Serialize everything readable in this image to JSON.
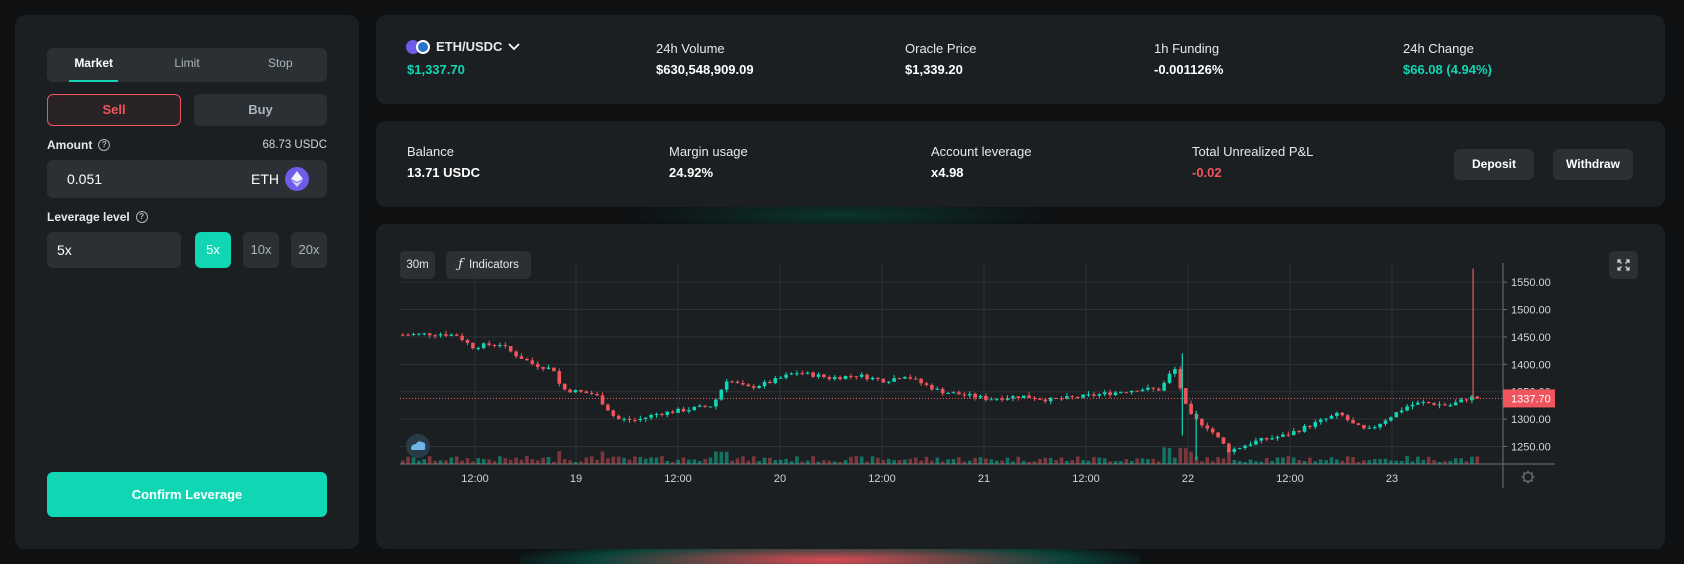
{
  "order": {
    "tabs": [
      "Market",
      "Limit",
      "Stop"
    ],
    "active_tab": "Market",
    "sell_label": "Sell",
    "buy_label": "Buy",
    "amount_label": "Amount",
    "available": "68.73 USDC",
    "amount_value": "0.051",
    "amount_unit": "ETH",
    "leverage_label": "Leverage level",
    "leverage_value": "5x",
    "leverage_options": [
      "5x",
      "10x",
      "20x"
    ],
    "selected_leverage": "5x",
    "confirm_label": "Confirm Leverage"
  },
  "market": {
    "pair": "ETH/USDC",
    "price": "$1,337.70",
    "stats": [
      {
        "label": "24h Volume",
        "value": "$630,548,909.09"
      },
      {
        "label": "Oracle Price",
        "value": "$1,339.20"
      },
      {
        "label": "1h Funding",
        "value": "-0.001126%"
      },
      {
        "label": "24h Change",
        "value": "$66.08 (4.94%)"
      }
    ]
  },
  "account": {
    "stats": [
      {
        "label": "Balance",
        "value": "13.71 USDC"
      },
      {
        "label": "Margin usage",
        "value": "24.92%"
      },
      {
        "label": "Account leverage",
        "value": "x4.98"
      },
      {
        "label": "Total Unrealized P&L",
        "value": "-0.02"
      }
    ],
    "deposit_label": "Deposit",
    "withdraw_label": "Withdraw"
  },
  "chart_toolbar": {
    "timeframe": "30m",
    "indicators_label": "Indicators"
  },
  "colors": {
    "accent": "#10d6b4",
    "down": "#f0555d",
    "panel": "#1b1f22",
    "background": "#0e1012"
  },
  "chart_data": {
    "type": "candlestick",
    "x_ticks": [
      "12:00",
      "19",
      "12:00",
      "20",
      "12:00",
      "21",
      "12:00",
      "22",
      "12:00",
      "23"
    ],
    "y_ticks": [
      "1550.00",
      "1500.00",
      "1450.00",
      "1400.00",
      "1350.00",
      "1300.00",
      "1250.00"
    ],
    "ylim": [
      1218,
      1585
    ],
    "last_price_label": "1337.70",
    "last_price": 1337.7,
    "close_path": [
      [
        0,
        1454
      ],
      [
        5,
        1456
      ],
      [
        8,
        1453
      ],
      [
        10,
        1432
      ],
      [
        14,
        1438
      ],
      [
        16,
        1420
      ],
      [
        19,
        1400
      ],
      [
        22,
        1390
      ],
      [
        23,
        1355
      ],
      [
        28,
        1345
      ],
      [
        31,
        1300
      ],
      [
        34,
        1298
      ],
      [
        37,
        1310
      ],
      [
        40,
        1315
      ],
      [
        45,
        1325
      ],
      [
        47,
        1372
      ],
      [
        50,
        1357
      ],
      [
        53,
        1366
      ],
      [
        57,
        1385
      ],
      [
        60,
        1380
      ],
      [
        62,
        1375
      ],
      [
        66,
        1380
      ],
      [
        70,
        1370
      ],
      [
        73,
        1380
      ],
      [
        75,
        1367
      ],
      [
        78,
        1351
      ],
      [
        82,
        1343
      ],
      [
        85,
        1337
      ],
      [
        90,
        1342
      ],
      [
        94,
        1335
      ],
      [
        98,
        1340
      ],
      [
        103,
        1348
      ],
      [
        107,
        1355
      ],
      [
        110,
        1354
      ],
      [
        112,
        1395
      ],
      [
        114,
        1310
      ],
      [
        115,
        1300
      ],
      [
        117,
        1284
      ],
      [
        120,
        1242
      ],
      [
        124,
        1260
      ],
      [
        128,
        1270
      ],
      [
        132,
        1290
      ],
      [
        136,
        1310
      ],
      [
        138,
        1290
      ],
      [
        140,
        1278
      ],
      [
        143,
        1302
      ],
      [
        146,
        1325
      ],
      [
        148,
        1330
      ],
      [
        152,
        1325
      ],
      [
        155,
        1340
      ],
      [
        156,
        1338
      ]
    ],
    "wick_events": [
      [
        113,
        1420,
        1270
      ],
      [
        115,
        1315,
        1225
      ],
      [
        155,
        1575,
        1338
      ]
    ]
  }
}
